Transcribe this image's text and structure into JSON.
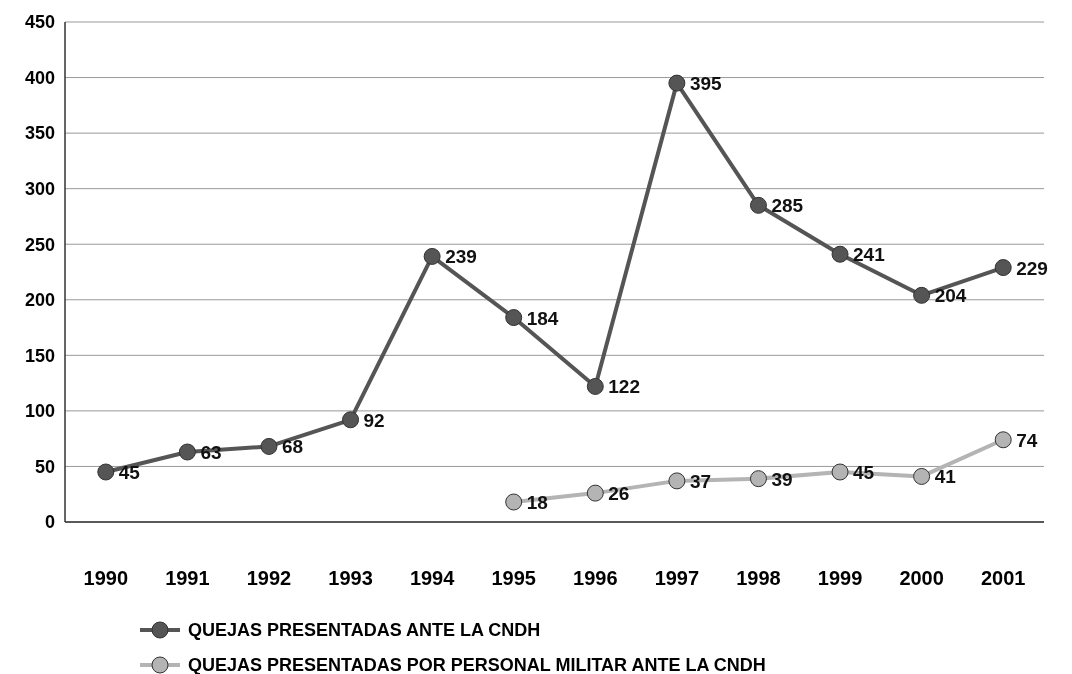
{
  "chart_data": {
    "type": "line",
    "categories": [
      "1990",
      "1991",
      "1992",
      "1993",
      "1994",
      "1995",
      "1996",
      "1997",
      "1998",
      "1999",
      "2000",
      "2001"
    ],
    "series": [
      {
        "name": "QUEJAS PRESENTADAS  ANTE LA CNDH",
        "color": "#555555",
        "values": [
          45,
          63,
          68,
          92,
          239,
          184,
          122,
          395,
          285,
          241,
          204,
          229
        ]
      },
      {
        "name": "QUEJAS PRESENTADAS POR PERSONAL MILITAR ANTE LA CNDH",
        "color": "#b4b4b4",
        "values": [
          null,
          null,
          null,
          null,
          null,
          18,
          26,
          37,
          39,
          45,
          41,
          74
        ]
      }
    ],
    "ylim": [
      0,
      450
    ],
    "yticks": [
      0,
      50,
      100,
      150,
      200,
      250,
      300,
      350,
      400,
      450
    ],
    "grid": "y",
    "legend": "bottom",
    "marker": "circle",
    "line_style": "solid",
    "data_labels": true
  }
}
